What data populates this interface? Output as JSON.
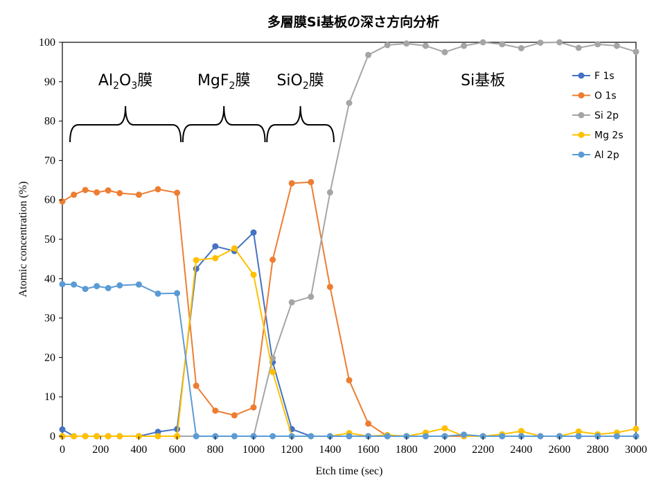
{
  "chart_data": {
    "type": "line",
    "title": "多層膜Si基板の深さ方向分析",
    "xlabel": "Etch time (sec)",
    "ylabel": "Atomic concentration (%)",
    "xlim": [
      0,
      3000
    ],
    "ylim": [
      0,
      100
    ],
    "xticks": [
      "0",
      "200",
      "400",
      "600",
      "800",
      "1000",
      "1200",
      "1400",
      "1600",
      "1800",
      "2000",
      "2200",
      "2400",
      "2600",
      "2800",
      "3000"
    ],
    "yticks": [
      "0",
      "10",
      "20",
      "30",
      "40",
      "50",
      "60",
      "70",
      "80",
      "90",
      "100"
    ],
    "grid": false,
    "legend_position": "top-right",
    "region_labels": [
      {
        "base": "Al",
        "sub1": "2",
        "mid": "O",
        "sub2": "3",
        "suffix": "膜",
        "x_start": 40,
        "x_end": 620
      },
      {
        "base": "MgF",
        "sub1": "2",
        "mid": "",
        "sub2": "",
        "suffix": "膜",
        "x_start": 630,
        "x_end": 1060
      },
      {
        "base": "SiO",
        "sub1": "2",
        "mid": "",
        "sub2": "",
        "suffix": "膜",
        "x_start": 1070,
        "x_end": 1420
      },
      {
        "base": "Si基板",
        "sub1": "",
        "mid": "",
        "sub2": "",
        "suffix": "",
        "x_start": 2200,
        "x_end": 2200
      }
    ],
    "series": [
      {
        "name": "F 1s",
        "color": "#4472C4",
        "x": [
          0,
          60,
          120,
          180,
          240,
          300,
          400,
          500,
          600,
          700,
          800,
          900,
          1000,
          1100,
          1200,
          1300,
          1400,
          1500,
          1600,
          1700,
          1800,
          1900,
          2000,
          2100,
          2200,
          2300,
          2400,
          2500,
          2600,
          2700,
          2800,
          2900,
          3000
        ],
        "y": [
          1.7,
          0,
          0,
          0,
          0,
          0,
          0,
          1.1,
          1.8,
          42.5,
          48.2,
          47.0,
          51.7,
          18.8,
          1.8,
          0,
          0,
          0,
          0,
          0,
          0,
          0,
          0,
          0,
          0,
          0,
          0,
          0,
          0,
          0,
          0,
          0,
          0
        ]
      },
      {
        "name": "O 1s",
        "color": "#ED7D31",
        "x": [
          0,
          60,
          120,
          180,
          240,
          300,
          400,
          500,
          600,
          700,
          800,
          900,
          1000,
          1100,
          1200,
          1300,
          1400,
          1500,
          1600,
          1700,
          1800,
          1900,
          2000,
          2100,
          2200,
          2300,
          2400,
          2500,
          2600,
          2700,
          2800,
          2900,
          3000
        ],
        "y": [
          59.6,
          61.3,
          62.5,
          61.9,
          62.4,
          61.7,
          61.3,
          62.7,
          61.8,
          12.8,
          6.5,
          5.3,
          7.3,
          44.8,
          64.2,
          64.5,
          37.9,
          14.2,
          3.2,
          0,
          0,
          0,
          0,
          0,
          0,
          0,
          0,
          0,
          0,
          0,
          0,
          0,
          0
        ]
      },
      {
        "name": "Si 2p",
        "color": "#A5A5A5",
        "x": [
          0,
          60,
          120,
          180,
          240,
          300,
          400,
          500,
          600,
          700,
          800,
          900,
          1000,
          1100,
          1200,
          1300,
          1400,
          1500,
          1600,
          1700,
          1800,
          1900,
          2000,
          2100,
          2200,
          2300,
          2400,
          2500,
          2600,
          2700,
          2800,
          2900,
          3000
        ],
        "y": [
          0,
          0,
          0,
          0,
          0,
          0,
          0,
          0,
          0,
          0,
          0,
          0,
          0,
          19.8,
          34.0,
          35.4,
          61.9,
          84.6,
          96.8,
          99.3,
          99.7,
          99.1,
          97.5,
          99.1,
          100,
          99.5,
          98.5,
          99.9,
          100,
          98.6,
          99.5,
          99.1,
          97.6
        ]
      },
      {
        "name": "Mg 2s",
        "color": "#FFC000",
        "x": [
          0,
          60,
          120,
          180,
          240,
          300,
          400,
          500,
          600,
          700,
          800,
          900,
          1000,
          1100,
          1200,
          1300,
          1400,
          1500,
          1600,
          1700,
          1800,
          1900,
          2000,
          2100,
          2200,
          2300,
          2400,
          2500,
          2600,
          2700,
          2800,
          2900,
          3000
        ],
        "y": [
          0,
          0,
          0,
          0,
          0,
          0,
          0,
          0,
          0,
          44.7,
          45.2,
          47.7,
          41.0,
          16.3,
          0,
          0,
          0,
          0.8,
          0,
          0.3,
          0,
          0.9,
          2.0,
          0,
          0,
          0.5,
          1.3,
          0,
          0,
          1.2,
          0.5,
          0.9,
          1.9
        ]
      },
      {
        "name": "Al 2p",
        "color": "#5B9BD5",
        "x": [
          0,
          60,
          120,
          180,
          240,
          300,
          400,
          500,
          600,
          700,
          800,
          900,
          1000,
          1100,
          1200,
          1300,
          1400,
          1500,
          1600,
          1700,
          1800,
          1900,
          2000,
          2100,
          2200,
          2300,
          2400,
          2500,
          2600,
          2700,
          2800,
          2900,
          3000
        ],
        "y": [
          38.6,
          38.5,
          37.4,
          38.1,
          37.6,
          38.3,
          38.5,
          36.2,
          36.3,
          0,
          0,
          0,
          0,
          0,
          0,
          0,
          0,
          0,
          0,
          0,
          0,
          0,
          0,
          0.4,
          0,
          0,
          0,
          0,
          0,
          0,
          0,
          0,
          0
        ]
      }
    ]
  }
}
